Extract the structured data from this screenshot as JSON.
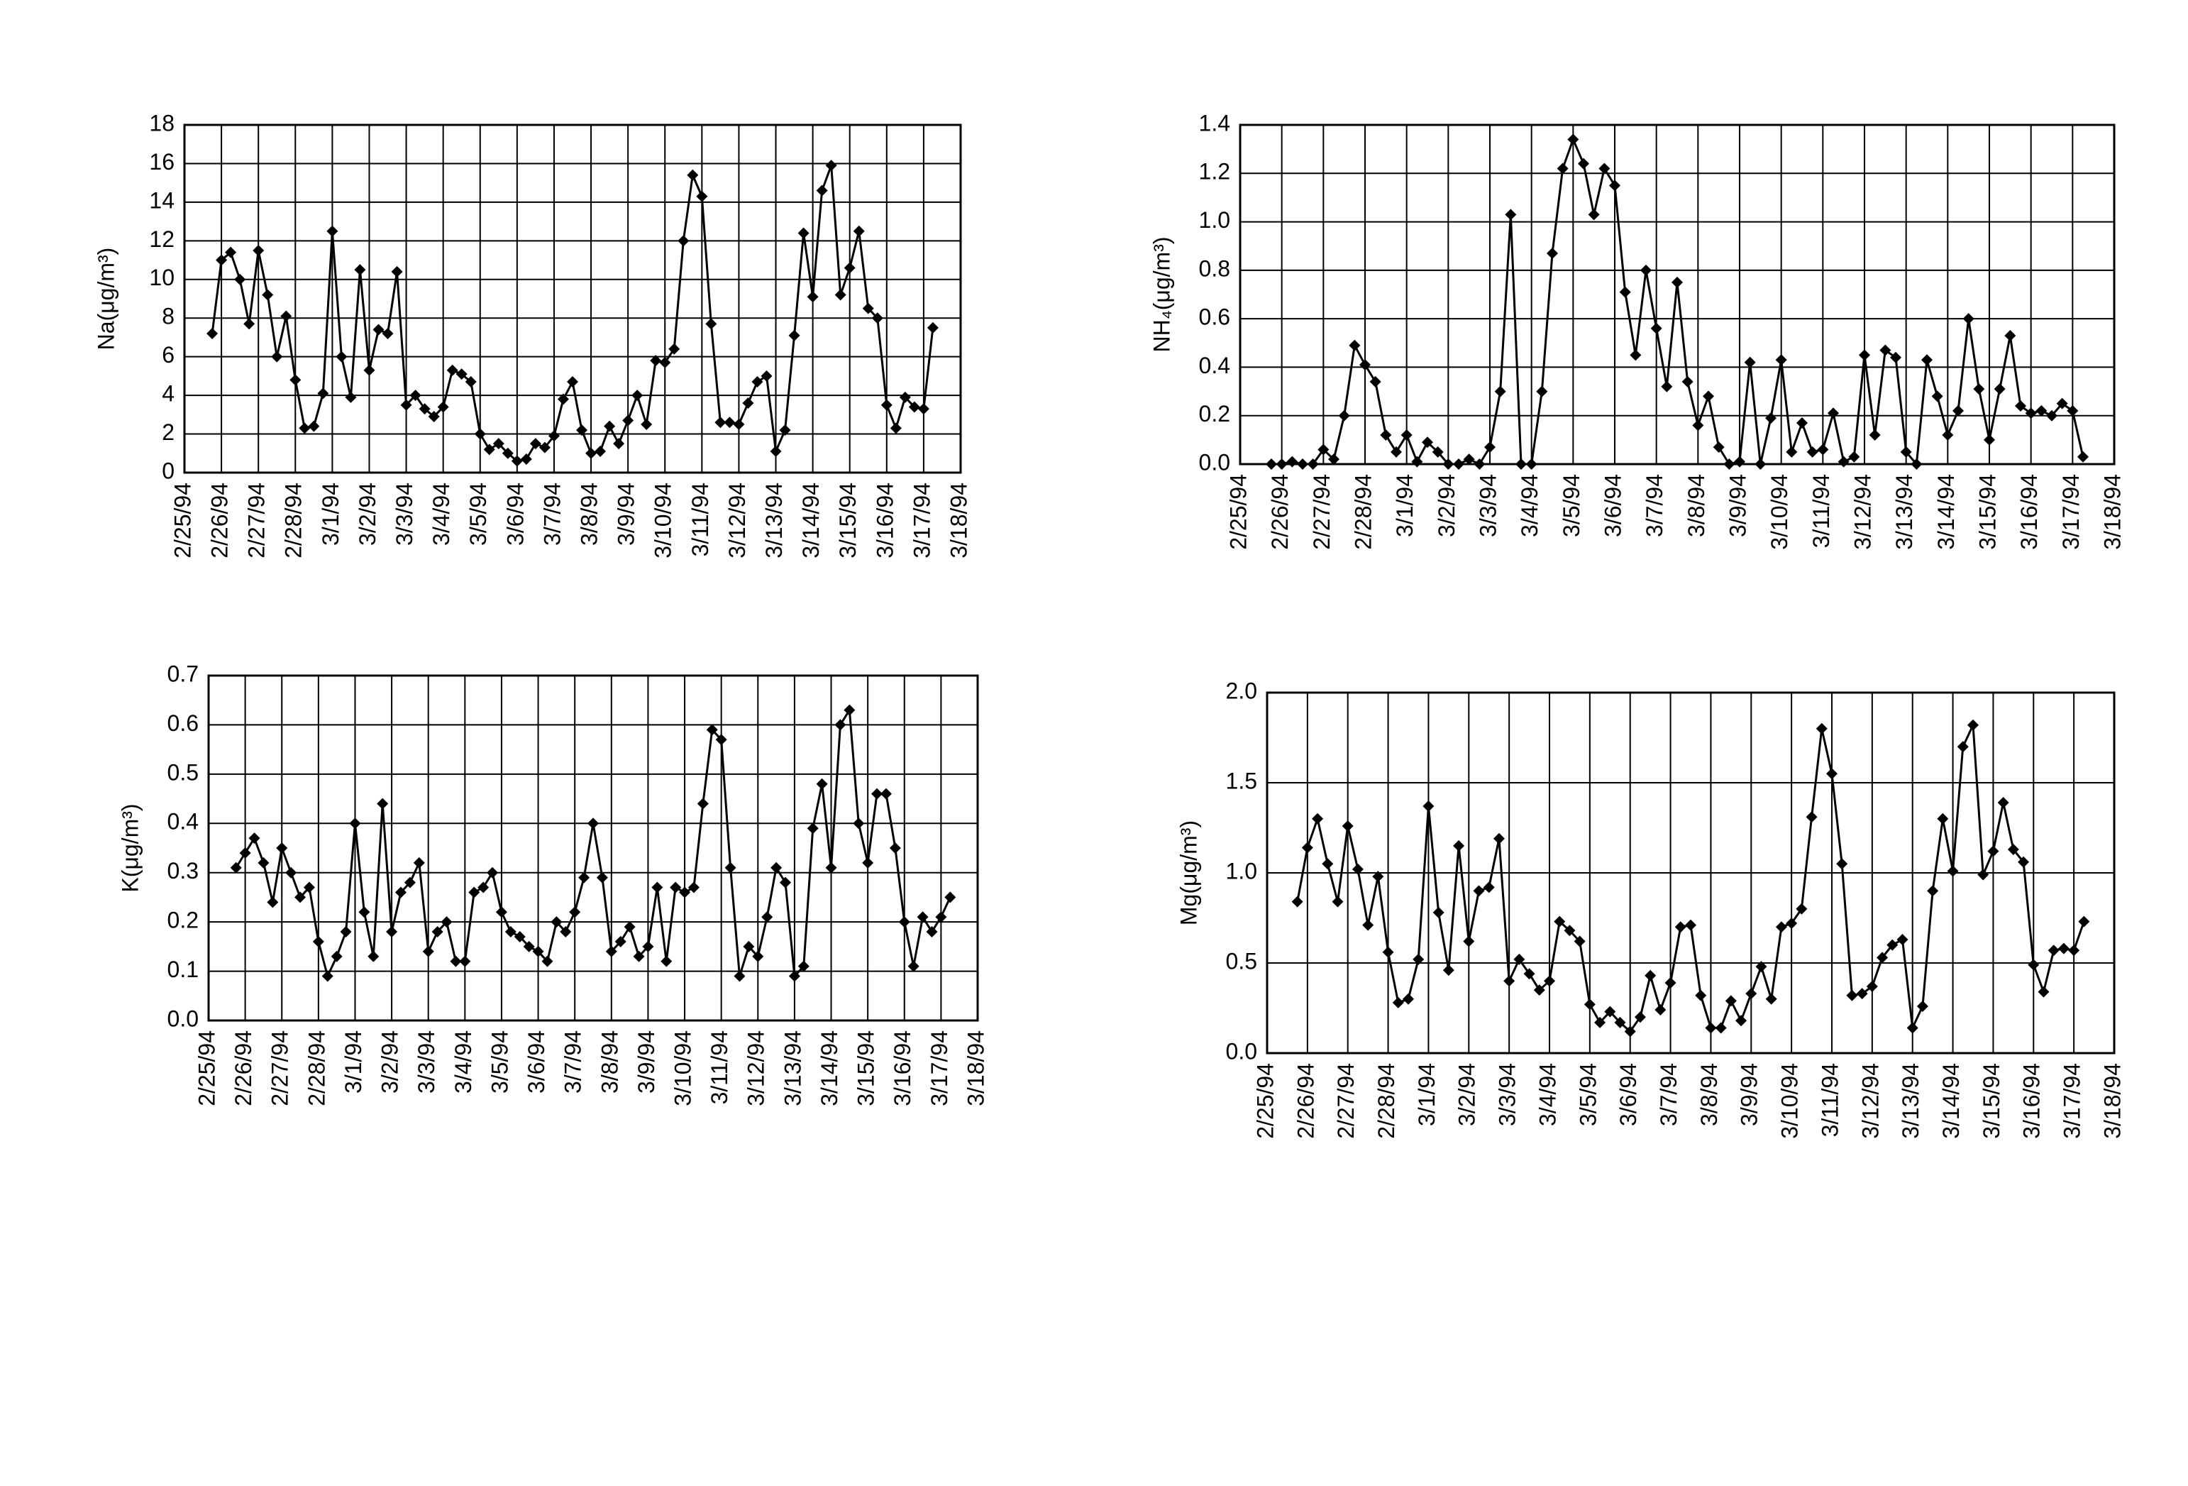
{
  "chart_data": [
    {
      "type": "line",
      "y_label": "Na(μg/m³)",
      "color": "#000000",
      "grid": true,
      "xlim": [
        0,
        21
      ],
      "ylim": [
        0,
        18
      ],
      "yticks": [
        0,
        2,
        4,
        6,
        8,
        10,
        12,
        14,
        16,
        18
      ],
      "xticks": [
        {
          "value": 0,
          "label": "2/25/94"
        },
        {
          "value": 1,
          "label": "2/26/94"
        },
        {
          "value": 2,
          "label": "2/27/94"
        },
        {
          "value": 3,
          "label": "2/28/94"
        },
        {
          "value": 4,
          "label": "3/1/94"
        },
        {
          "value": 5,
          "label": "3/2/94"
        },
        {
          "value": 6,
          "label": "3/3/94"
        },
        {
          "value": 7,
          "label": "3/4/94"
        },
        {
          "value": 8,
          "label": "3/5/94"
        },
        {
          "value": 9,
          "label": "3/6/94"
        },
        {
          "value": 10,
          "label": "3/7/94"
        },
        {
          "value": 11,
          "label": "3/8/94"
        },
        {
          "value": 12,
          "label": "3/9/94"
        },
        {
          "value": 13,
          "label": "3/10/94"
        },
        {
          "value": 14,
          "label": "3/11/94"
        },
        {
          "value": 15,
          "label": "3/12/94"
        },
        {
          "value": 16,
          "label": "3/13/94"
        },
        {
          "value": 17,
          "label": "3/14/94"
        },
        {
          "value": 18,
          "label": "3/15/94"
        },
        {
          "value": 19,
          "label": "3/16/94"
        },
        {
          "value": 20,
          "label": "3/17/94"
        },
        {
          "value": 21,
          "label": "3/18/94"
        }
      ],
      "x": [
        0.75,
        1,
        1.25,
        1.5,
        1.75,
        2,
        2.25,
        2.5,
        2.75,
        3,
        3.25,
        3.5,
        3.75,
        4,
        4.25,
        4.5,
        4.75,
        5,
        5.25,
        5.5,
        5.75,
        6,
        6.25,
        6.5,
        6.75,
        7,
        7.25,
        7.5,
        7.75,
        8,
        8.25,
        8.5,
        8.75,
        9,
        9.25,
        9.5,
        9.75,
        10,
        10.25,
        10.5,
        10.75,
        11,
        11.25,
        11.5,
        11.75,
        12,
        12.25,
        12.5,
        12.75,
        13,
        13.25,
        13.5,
        13.75,
        14,
        14.25,
        14.5,
        14.75,
        15,
        15.25,
        15.5,
        15.75,
        16,
        16.25,
        16.5,
        16.75,
        17,
        17.25,
        17.5,
        17.75,
        18,
        18.25,
        18.5,
        18.75,
        19,
        19.25,
        19.5,
        19.75,
        20,
        20.25
      ],
      "values": [
        7.2,
        11,
        11.4,
        10,
        7.7,
        11.5,
        9.2,
        6,
        8.1,
        4.8,
        2.3,
        2.4,
        4.1,
        12.5,
        6,
        3.9,
        10.5,
        5.3,
        7.4,
        7.2,
        10.4,
        3.5,
        4,
        3.3,
        2.9,
        3.4,
        5.3,
        5.1,
        4.7,
        2,
        1.2,
        1.5,
        1,
        0.6,
        0.7,
        1.5,
        1.3,
        1.9,
        3.8,
        4.7,
        2.2,
        1,
        1.1,
        2.4,
        1.5,
        2.7,
        4,
        2.5,
        5.8,
        5.7,
        6.4,
        12,
        15.4,
        14.3,
        7.7,
        2.6,
        2.6,
        2.5,
        3.6,
        4.7,
        5,
        1.1,
        2.2,
        7.1,
        12.4,
        9.1,
        14.6,
        15.9,
        9.2,
        10.6,
        12.5,
        8.5,
        8,
        3.5,
        2.3,
        3.9,
        3.4,
        3.3,
        7.5
      ]
    },
    {
      "type": "line",
      "y_label": "NH₄(μg/m³)",
      "color": "#000000",
      "grid": true,
      "xlim": [
        0,
        21
      ],
      "ylim": [
        0,
        1.4
      ],
      "yticks": [
        {
          "value": 0,
          "label": "0.0"
        },
        0.2,
        0.4,
        0.6,
        0.8,
        {
          "value": 1,
          "label": "1.0"
        },
        1.2,
        1.4
      ],
      "xticks": [
        {
          "value": 0,
          "label": "2/25/94"
        },
        {
          "value": 1,
          "label": "2/26/94"
        },
        {
          "value": 2,
          "label": "2/27/94"
        },
        {
          "value": 3,
          "label": "2/28/94"
        },
        {
          "value": 4,
          "label": "3/1/94"
        },
        {
          "value": 5,
          "label": "3/2/94"
        },
        {
          "value": 6,
          "label": "3/3/94"
        },
        {
          "value": 7,
          "label": "3/4/94"
        },
        {
          "value": 8,
          "label": "3/5/94"
        },
        {
          "value": 9,
          "label": "3/6/94"
        },
        {
          "value": 10,
          "label": "3/7/94"
        },
        {
          "value": 11,
          "label": "3/8/94"
        },
        {
          "value": 12,
          "label": "3/9/94"
        },
        {
          "value": 13,
          "label": "3/10/94"
        },
        {
          "value": 14,
          "label": "3/11/94"
        },
        {
          "value": 15,
          "label": "3/12/94"
        },
        {
          "value": 16,
          "label": "3/13/94"
        },
        {
          "value": 17,
          "label": "3/14/94"
        },
        {
          "value": 18,
          "label": "3/15/94"
        },
        {
          "value": 19,
          "label": "3/16/94"
        },
        {
          "value": 20,
          "label": "3/17/94"
        },
        {
          "value": 21,
          "label": "3/18/94"
        }
      ],
      "x": [
        0.75,
        1,
        1.25,
        1.5,
        1.75,
        2,
        2.25,
        2.5,
        2.75,
        3,
        3.25,
        3.5,
        3.75,
        4,
        4.25,
        4.5,
        4.75,
        5,
        5.25,
        5.5,
        5.75,
        6,
        6.25,
        6.5,
        6.75,
        7,
        7.25,
        7.5,
        7.75,
        8,
        8.25,
        8.5,
        8.75,
        9,
        9.25,
        9.5,
        9.75,
        10,
        10.25,
        10.5,
        10.75,
        11,
        11.25,
        11.5,
        11.75,
        12,
        12.25,
        12.5,
        12.75,
        13,
        13.25,
        13.5,
        13.75,
        14,
        14.25,
        14.5,
        14.75,
        15,
        15.25,
        15.5,
        15.75,
        16,
        16.25,
        16.5,
        16.75,
        17,
        17.25,
        17.5,
        17.75,
        18,
        18.25,
        18.5,
        18.75,
        19,
        19.25,
        19.5,
        19.75,
        20,
        20.25
      ],
      "values": [
        0,
        0,
        0.01,
        0,
        0,
        0.06,
        0.02,
        0.2,
        0.49,
        0.41,
        0.34,
        0.12,
        0.05,
        0.12,
        0.01,
        0.09,
        0.05,
        0,
        0,
        0.02,
        0,
        0.07,
        0.3,
        1.03,
        0,
        0,
        0.3,
        0.87,
        1.22,
        1.34,
        1.24,
        1.03,
        1.22,
        1.15,
        0.71,
        0.45,
        0.8,
        0.56,
        0.32,
        0.75,
        0.34,
        0.16,
        0.28,
        0.07,
        0,
        0.01,
        0.42,
        0,
        0.19,
        0.43,
        0.05,
        0.17,
        0.05,
        0.06,
        0.21,
        0.01,
        0.03,
        0.45,
        0.12,
        0.47,
        0.44,
        0.05,
        0,
        0.43,
        0.28,
        0.12,
        0.22,
        0.6,
        0.31,
        0.1,
        0.31,
        0.53,
        0.24,
        0.21,
        0.22,
        0.2,
        0.25,
        0.22,
        0.03
      ]
    },
    {
      "type": "line",
      "y_label": "K(μg/m³)",
      "color": "#000000",
      "grid": true,
      "xlim": [
        0,
        21
      ],
      "ylim": [
        0,
        0.7
      ],
      "yticks": [
        {
          "value": 0,
          "label": "0.0"
        },
        0.1,
        0.2,
        0.3,
        0.4,
        0.5,
        0.6,
        0.7
      ],
      "xticks": [
        {
          "value": 0,
          "label": "2/25/94"
        },
        {
          "value": 1,
          "label": "2/26/94"
        },
        {
          "value": 2,
          "label": "2/27/94"
        },
        {
          "value": 3,
          "label": "2/28/94"
        },
        {
          "value": 4,
          "label": "3/1/94"
        },
        {
          "value": 5,
          "label": "3/2/94"
        },
        {
          "value": 6,
          "label": "3/3/94"
        },
        {
          "value": 7,
          "label": "3/4/94"
        },
        {
          "value": 8,
          "label": "3/5/94"
        },
        {
          "value": 9,
          "label": "3/6/94"
        },
        {
          "value": 10,
          "label": "3/7/94"
        },
        {
          "value": 11,
          "label": "3/8/94"
        },
        {
          "value": 12,
          "label": "3/9/94"
        },
        {
          "value": 13,
          "label": "3/10/94"
        },
        {
          "value": 14,
          "label": "3/11/94"
        },
        {
          "value": 15,
          "label": "3/12/94"
        },
        {
          "value": 16,
          "label": "3/13/94"
        },
        {
          "value": 17,
          "label": "3/14/94"
        },
        {
          "value": 18,
          "label": "3/15/94"
        },
        {
          "value": 19,
          "label": "3/16/94"
        },
        {
          "value": 20,
          "label": "3/17/94"
        },
        {
          "value": 21,
          "label": "3/18/94"
        }
      ],
      "x": [
        0.75,
        1,
        1.25,
        1.5,
        1.75,
        2,
        2.25,
        2.5,
        2.75,
        3,
        3.25,
        3.5,
        3.75,
        4,
        4.25,
        4.5,
        4.75,
        5,
        5.25,
        5.5,
        5.75,
        6,
        6.25,
        6.5,
        6.75,
        7,
        7.25,
        7.5,
        7.75,
        8,
        8.25,
        8.5,
        8.75,
        9,
        9.25,
        9.5,
        9.75,
        10,
        10.25,
        10.5,
        10.75,
        11,
        11.25,
        11.5,
        11.75,
        12,
        12.25,
        12.5,
        12.75,
        13,
        13.25,
        13.5,
        13.75,
        14,
        14.25,
        14.5,
        14.75,
        15,
        15.25,
        15.5,
        15.75,
        16,
        16.25,
        16.5,
        16.75,
        17,
        17.25,
        17.5,
        17.75,
        18,
        18.25,
        18.5,
        18.75,
        19,
        19.25,
        19.5,
        19.75,
        20,
        20.25
      ],
      "values": [
        0.31,
        0.34,
        0.37,
        0.32,
        0.24,
        0.35,
        0.3,
        0.25,
        0.27,
        0.16,
        0.09,
        0.13,
        0.18,
        0.4,
        0.22,
        0.13,
        0.44,
        0.18,
        0.26,
        0.28,
        0.32,
        0.14,
        0.18,
        0.2,
        0.12,
        0.12,
        0.26,
        0.27,
        0.3,
        0.22,
        0.18,
        0.17,
        0.15,
        0.14,
        0.12,
        0.2,
        0.18,
        0.22,
        0.29,
        0.4,
        0.29,
        0.14,
        0.16,
        0.19,
        0.13,
        0.15,
        0.27,
        0.12,
        0.27,
        0.26,
        0.27,
        0.44,
        0.59,
        0.57,
        0.31,
        0.09,
        0.15,
        0.13,
        0.21,
        0.31,
        0.28,
        0.09,
        0.11,
        0.39,
        0.48,
        0.31,
        0.6,
        0.63,
        0.4,
        0.32,
        0.46,
        0.46,
        0.35,
        0.2,
        0.11,
        0.21,
        0.18,
        0.21,
        0.25
      ]
    },
    {
      "type": "line",
      "y_label": "Mg(μg/m³)",
      "color": "#000000",
      "grid": true,
      "xlim": [
        0,
        21
      ],
      "ylim": [
        0,
        2
      ],
      "yticks": [
        {
          "value": 0,
          "label": "0.0"
        },
        0.5,
        {
          "value": 1,
          "label": "1.0"
        },
        1.5,
        {
          "value": 2,
          "label": "2.0"
        }
      ],
      "xticks": [
        {
          "value": 0,
          "label": "2/25/94"
        },
        {
          "value": 1,
          "label": "2/26/94"
        },
        {
          "value": 2,
          "label": "2/27/94"
        },
        {
          "value": 3,
          "label": "2/28/94"
        },
        {
          "value": 4,
          "label": "3/1/94"
        },
        {
          "value": 5,
          "label": "3/2/94"
        },
        {
          "value": 6,
          "label": "3/3/94"
        },
        {
          "value": 7,
          "label": "3/4/94"
        },
        {
          "value": 8,
          "label": "3/5/94"
        },
        {
          "value": 9,
          "label": "3/6/94"
        },
        {
          "value": 10,
          "label": "3/7/94"
        },
        {
          "value": 11,
          "label": "3/8/94"
        },
        {
          "value": 12,
          "label": "3/9/94"
        },
        {
          "value": 13,
          "label": "3/10/94"
        },
        {
          "value": 14,
          "label": "3/11/94"
        },
        {
          "value": 15,
          "label": "3/12/94"
        },
        {
          "value": 16,
          "label": "3/13/94"
        },
        {
          "value": 17,
          "label": "3/14/94"
        },
        {
          "value": 18,
          "label": "3/15/94"
        },
        {
          "value": 19,
          "label": "3/16/94"
        },
        {
          "value": 20,
          "label": "3/17/94"
        },
        {
          "value": 21,
          "label": "3/18/94"
        }
      ],
      "x": [
        0.75,
        1,
        1.25,
        1.5,
        1.75,
        2,
        2.25,
        2.5,
        2.75,
        3,
        3.25,
        3.5,
        3.75,
        4,
        4.25,
        4.5,
        4.75,
        5,
        5.25,
        5.5,
        5.75,
        6,
        6.25,
        6.5,
        6.75,
        7,
        7.25,
        7.5,
        7.75,
        8,
        8.25,
        8.5,
        8.75,
        9,
        9.25,
        9.5,
        9.75,
        10,
        10.25,
        10.5,
        10.75,
        11,
        11.25,
        11.5,
        11.75,
        12,
        12.25,
        12.5,
        12.75,
        13,
        13.25,
        13.5,
        13.75,
        14,
        14.25,
        14.5,
        14.75,
        15,
        15.25,
        15.5,
        15.75,
        16,
        16.25,
        16.5,
        16.75,
        17,
        17.25,
        17.5,
        17.75,
        18,
        18.25,
        18.5,
        18.75,
        19,
        19.25,
        19.5,
        19.75,
        20,
        20.25
      ],
      "values": [
        0.84,
        1.14,
        1.3,
        1.05,
        0.84,
        1.26,
        1.02,
        0.71,
        0.98,
        0.56,
        0.28,
        0.3,
        0.52,
        1.37,
        0.78,
        0.46,
        1.15,
        0.62,
        0.9,
        0.92,
        1.19,
        0.4,
        0.52,
        0.44,
        0.35,
        0.4,
        0.73,
        0.68,
        0.62,
        0.27,
        0.17,
        0.23,
        0.17,
        0.12,
        0.2,
        0.43,
        0.24,
        0.39,
        0.7,
        0.71,
        0.32,
        0.14,
        0.14,
        0.29,
        0.18,
        0.33,
        0.48,
        0.3,
        0.7,
        0.72,
        0.8,
        1.31,
        1.8,
        1.55,
        1.05,
        0.32,
        0.33,
        0.37,
        0.53,
        0.6,
        0.63,
        0.14,
        0.26,
        0.9,
        1.3,
        1.01,
        1.7,
        1.82,
        0.99,
        1.12,
        1.39,
        1.13,
        1.06,
        0.49,
        0.34,
        0.57,
        0.58,
        0.57,
        0.73
      ]
    }
  ]
}
